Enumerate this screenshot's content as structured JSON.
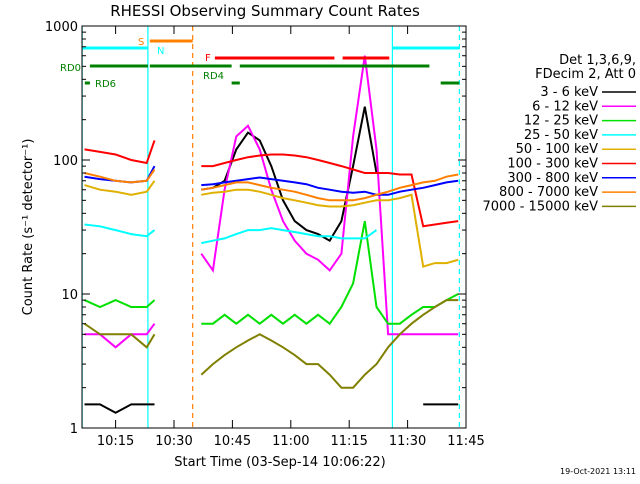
{
  "chart_data": {
    "type": "line",
    "title": "RHESSI Observing Summary Count Rates",
    "xlabel": "Start Time (03-Sep-14 10:06:22)",
    "ylabel": "Count Rate (s⁻¹ detector⁻¹)",
    "timestamp": "19-Oct-2021 13:11",
    "legend_header": [
      "Det 1,3,6,9,",
      "FDecim 2, Att 0"
    ],
    "log_y": true,
    "xlim": [
      606.37,
      705
    ],
    "ylim": [
      1,
      1000
    ],
    "xticks": [
      {
        "value": 615,
        "label": "10:15"
      },
      {
        "value": 630,
        "label": "10:30"
      },
      {
        "value": 645,
        "label": "10:45"
      },
      {
        "value": 660,
        "label": "11:00"
      },
      {
        "value": 675,
        "label": "11:15"
      },
      {
        "value": 690,
        "label": "11:30"
      },
      {
        "value": 705,
        "label": "11:45"
      }
    ],
    "yticks": [
      1,
      10,
      100,
      1000
    ],
    "x": [
      607,
      611,
      615,
      619,
      623,
      625,
      630,
      637,
      640,
      643,
      646,
      649,
      652,
      655,
      658,
      661,
      664,
      667,
      670,
      673,
      676,
      679,
      682,
      685,
      688,
      691,
      694,
      697,
      700,
      703
    ],
    "series": [
      {
        "name": "3 - 6 keV",
        "color": "#000000",
        "values": [
          1.5,
          1.5,
          1.3,
          1.5,
          1.5,
          1.5,
          null,
          60,
          62,
          70,
          120,
          160,
          140,
          90,
          50,
          35,
          30,
          28,
          25,
          35,
          90,
          250,
          80,
          null,
          null,
          null,
          1.5,
          1.5,
          1.5,
          1.5
        ]
      },
      {
        "name": "6 - 12 keV",
        "color": "#ff00ff",
        "values": [
          5,
          5,
          4,
          5,
          5,
          6,
          null,
          20,
          15,
          60,
          150,
          180,
          120,
          60,
          35,
          25,
          20,
          18,
          15,
          20,
          150,
          600,
          120,
          5,
          5,
          5,
          5,
          5,
          5,
          5
        ]
      },
      {
        "name": "12 - 25 keV",
        "color": "#00e000",
        "values": [
          9,
          8,
          9,
          8,
          8,
          9,
          null,
          6,
          6,
          7,
          6,
          7,
          6,
          7,
          6,
          7,
          6,
          7,
          6,
          8,
          12,
          35,
          8,
          6,
          6,
          7,
          8,
          8,
          9,
          10
        ]
      },
      {
        "name": "25 - 50 keV",
        "color": "#00ffff",
        "values": [
          33,
          32,
          30,
          28,
          27,
          30,
          null,
          24,
          25,
          26,
          28,
          30,
          30,
          31,
          30,
          29,
          28,
          27,
          27,
          26,
          26,
          26,
          30,
          null,
          null,
          null,
          null,
          null,
          null,
          null
        ]
      },
      {
        "name": "50 - 100 keV",
        "color": "#e0b000",
        "values": [
          65,
          60,
          58,
          55,
          58,
          70,
          null,
          55,
          57,
          58,
          60,
          60,
          58,
          55,
          52,
          50,
          48,
          46,
          45,
          45,
          46,
          48,
          50,
          50,
          52,
          55,
          16,
          17,
          17,
          18
        ]
      },
      {
        "name": "100 - 300 keV",
        "color": "#ff0000",
        "values": [
          120,
          115,
          110,
          100,
          95,
          140,
          null,
          90,
          90,
          95,
          100,
          105,
          108,
          110,
          110,
          108,
          105,
          100,
          95,
          90,
          85,
          80,
          80,
          80,
          78,
          78,
          32,
          33,
          34,
          35
        ]
      },
      {
        "name": "300 - 800 keV",
        "color": "#0000ff",
        "values": [
          75,
          72,
          70,
          68,
          70,
          90,
          null,
          65,
          66,
          68,
          70,
          72,
          74,
          72,
          70,
          68,
          66,
          62,
          60,
          58,
          57,
          58,
          55,
          55,
          58,
          60,
          62,
          65,
          68,
          70
        ]
      },
      {
        "name": "800 - 7000 keV",
        "color": "#ff8000",
        "values": [
          80,
          75,
          70,
          68,
          70,
          85,
          null,
          60,
          62,
          65,
          68,
          68,
          65,
          62,
          60,
          58,
          55,
          52,
          50,
          50,
          50,
          52,
          55,
          58,
          62,
          65,
          68,
          70,
          75,
          78
        ]
      },
      {
        "name": "7000 - 15000 keV",
        "color": "#808000",
        "values": [
          6,
          5,
          5,
          5,
          4,
          5,
          null,
          2.5,
          3,
          3.5,
          4,
          4.5,
          5,
          4.5,
          4,
          3.5,
          3,
          3,
          2.5,
          2,
          2,
          2.5,
          3,
          4,
          5,
          6,
          7,
          8,
          9,
          9
        ]
      }
    ],
    "flags": [
      {
        "label": "S",
        "color": "#ff8000",
        "intervals": [
          [
            623.8,
            634.8
          ]
        ]
      },
      {
        "label": "N",
        "color": "#00ffff",
        "intervals": [
          [
            606.4,
            623.3
          ],
          [
            686.1,
            703.3
          ]
        ]
      },
      {
        "label": "F",
        "color": "#ff0000",
        "intervals": [
          [
            640.5,
            671.2
          ],
          [
            673.3,
            685.3
          ]
        ]
      },
      {
        "label": "RD0",
        "color": "#008000",
        "intervals": [
          [
            608.4,
            623.3
          ],
          [
            623.8,
            644.8
          ],
          [
            646.9,
            695.6
          ]
        ]
      },
      {
        "label": "RD4",
        "color": "#008000",
        "intervals": [
          [
            644.8,
            646.9
          ]
        ]
      },
      {
        "label": "RD6",
        "color": "#008000",
        "intervals": [
          [
            607.1,
            608.4
          ],
          [
            698.5,
            703.3
          ]
        ]
      }
    ],
    "vlines": [
      {
        "x": 606.4,
        "color": "#00ffff",
        "dashed": false
      },
      {
        "x": 623.3,
        "color": "#00ffff",
        "dashed": false
      },
      {
        "x": 686.1,
        "color": "#00ffff",
        "dashed": false
      },
      {
        "x": 703.3,
        "color": "#00ffff",
        "dashed": true
      },
      {
        "x": 634.8,
        "color": "#ff8000",
        "dashed": true
      }
    ]
  }
}
